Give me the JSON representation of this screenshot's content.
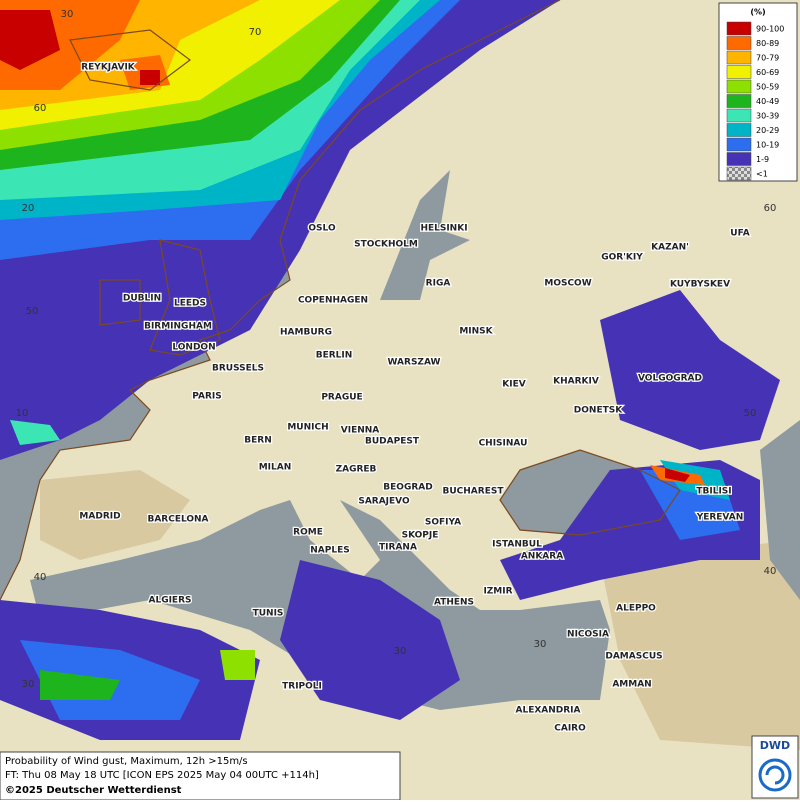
{
  "legend": {
    "title": "(%)",
    "entries": [
      {
        "label": "90-100",
        "color": "#c80000"
      },
      {
        "label": "80-89",
        "color": "#ff6a00"
      },
      {
        "label": "70-79",
        "color": "#ffb400"
      },
      {
        "label": "60-69",
        "color": "#f0f000"
      },
      {
        "label": "50-59",
        "color": "#8ee000"
      },
      {
        "label": "40-49",
        "color": "#1eb41e"
      },
      {
        "label": "30-39",
        "color": "#3ce6b4"
      },
      {
        "label": "20-29",
        "color": "#00b4c8"
      },
      {
        "label": "10-19",
        "color": "#2d6ef0"
      },
      {
        "label": "1-9",
        "color": "#4632b4"
      },
      {
        "label": "<1",
        "color": "checker"
      }
    ]
  },
  "grid_labels": [
    "30",
    "70",
    "60",
    "20",
    "50",
    "10",
    "40",
    "30",
    "30",
    "30",
    "60",
    "50",
    "40"
  ],
  "cities": [
    "REYKJAVIK",
    "OSLO",
    "STOCKHOLM",
    "HELSINKI",
    "DUBLIN",
    "LEEDS",
    "BIRMINGHAM",
    "LONDON",
    "COPENHAGEN",
    "RIGA",
    "MOSCOW",
    "GOR'KIY",
    "KAZAN'",
    "UFA",
    "KUYBYSKEV",
    "HAMBURG",
    "BERLIN",
    "MINSK",
    "WARSZAW",
    "BRUSSELS",
    "PARIS",
    "PRAGUE",
    "KIEV",
    "KHARKIV",
    "VOLGOGRAD",
    "DONETSK",
    "MUNICH",
    "VIENNA",
    "BERN",
    "BUDAPEST",
    "CHISINAU",
    "MILAN",
    "ZAGREB",
    "BEOGRAD",
    "BUCHAREST",
    "TBILISI",
    "MADRID",
    "BARCELONA",
    "SARAJEVO",
    "SOFIYA",
    "YEREVAN",
    "ROME",
    "SKOPJE",
    "TIRANA",
    "ISTANBUL",
    "NAPLES",
    "ANKARA",
    "ALGIERS",
    "IZMIR",
    "ATHENS",
    "ALEPPO",
    "TUNIS",
    "NICOSIA",
    "DAMASCUS",
    "TRIPOLI",
    "AMMAN",
    "ALEXANDRIA",
    "CAIRO"
  ],
  "footer": {
    "line1": "Probability of Wind gust, Maximum, 12h >15m/s",
    "line2": "FT: Thu 08 May 18 UTC [ICON EPS 2025 May 04 00UTC +114h]",
    "line3": "©2025 Deutscher Wetterdienst"
  },
  "logo": "DWD"
}
